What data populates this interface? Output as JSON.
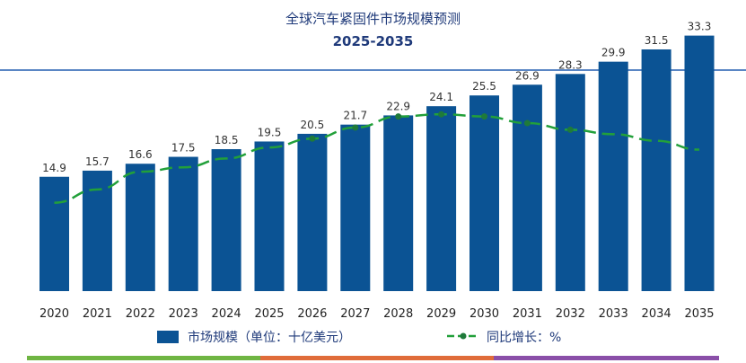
{
  "title": "全球汽车紧固件市场规模预测",
  "subtitle": "2025-2035",
  "colors": {
    "bar": "#0b5394",
    "line": "#22a03a",
    "marker": "#1f7a3a",
    "title": "#1f3a7a",
    "bottom_segments": [
      "#6fb543",
      "#e06c3a",
      "#8a4fa8"
    ]
  },
  "chart_data": {
    "type": "bar",
    "title": "全球汽车紧固件市场规模预测",
    "subtitle": "2025-2035",
    "categories": [
      "2020",
      "2021",
      "2022",
      "2023",
      "2024",
      "2025",
      "2026",
      "2027",
      "2028",
      "2029",
      "2030",
      "2031",
      "2032",
      "2033",
      "2034",
      "2035"
    ],
    "series": [
      {
        "name": "市场规模（单位：十亿美元）",
        "type": "bar",
        "values": [
          14.9,
          15.7,
          16.6,
          17.5,
          18.5,
          19.5,
          20.5,
          21.7,
          22.9,
          24.1,
          25.5,
          26.9,
          28.3,
          29.9,
          31.5,
          33.3
        ],
        "labels": [
          "14.9",
          "15.7",
          "16.6",
          "17.5",
          "18.5",
          "19.5",
          "20.5",
          "21.7",
          "22.9",
          "24.1",
          "25.5",
          "26.9",
          "28.3",
          "29.9",
          "31.5",
          "33.3"
        ]
      },
      {
        "name": "同比增长：%",
        "type": "line",
        "style": "dashed",
        "values": [
          4.0,
          4.6,
          5.4,
          5.6,
          6.0,
          6.5,
          6.9,
          7.4,
          7.9,
          8.0,
          7.9,
          7.6,
          7.3,
          7.1,
          6.8,
          6.4
        ],
        "markers_at": [
          6,
          7,
          8,
          9,
          10,
          11,
          12
        ]
      }
    ],
    "ylim": [
      0,
      35
    ],
    "secondary_ylim": [
      0,
      9.5
    ],
    "grid": false,
    "legend": "bottom"
  }
}
